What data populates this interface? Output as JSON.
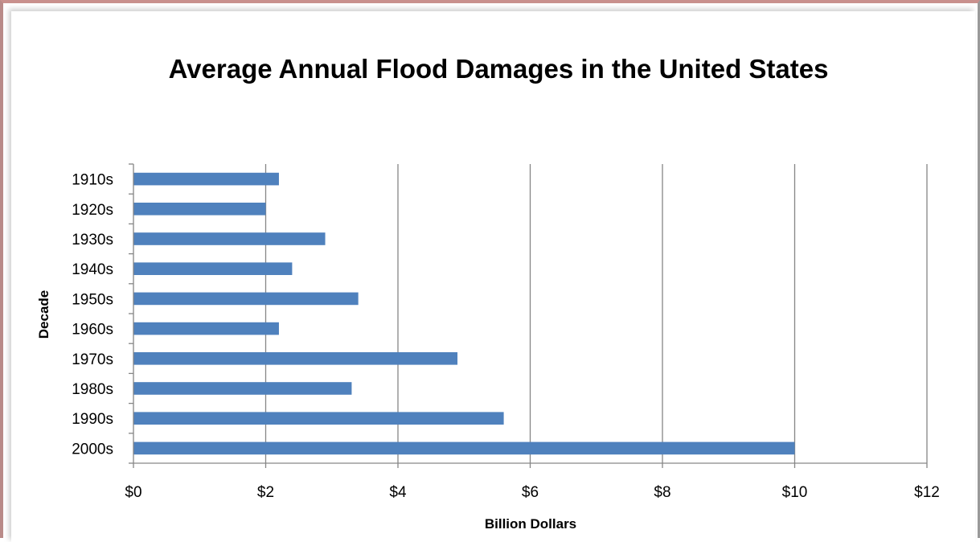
{
  "chart_data": {
    "type": "bar",
    "orientation": "horizontal",
    "title": "Average Annual Flood Damages in the United States",
    "xlabel": "Billion Dollars",
    "ylabel": "Decade",
    "categories": [
      "1910s",
      "1920s",
      "1930s",
      "1940s",
      "1950s",
      "1960s",
      "1970s",
      "1980s",
      "1990s",
      "2000s"
    ],
    "values": [
      2.2,
      2.0,
      2.9,
      2.4,
      3.4,
      2.2,
      4.9,
      3.3,
      5.6,
      10.0
    ],
    "xlim": [
      0,
      12
    ],
    "xticks": [
      0,
      2,
      4,
      6,
      8,
      10,
      12
    ],
    "xtick_labels": [
      "$0",
      "$2",
      "$4",
      "$6",
      "$8",
      "$10",
      "$12"
    ],
    "grid": "vertical major gridlines",
    "legend": "none",
    "bar_color": "#4f81bd",
    "grid_color": "#868686"
  }
}
